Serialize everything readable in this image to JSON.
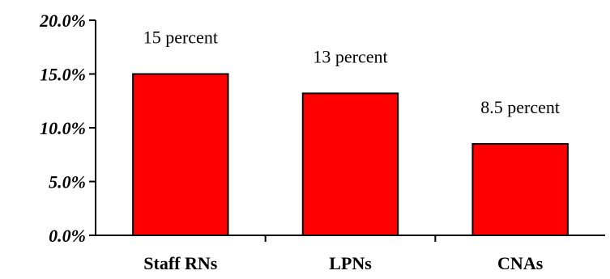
{
  "chart_data": {
    "type": "bar",
    "categories": [
      "Staff RNs",
      "LPNs",
      "CNAs"
    ],
    "values": [
      15.0,
      13.2,
      8.5
    ],
    "data_labels": [
      "15 percent",
      "13 percent",
      "8.5 percent"
    ],
    "yticks": [
      "0.0%",
      "5.0%",
      "10.0%",
      "15.0%",
      "20.0%"
    ],
    "ytick_values": [
      0,
      5,
      10,
      15,
      20
    ],
    "ylim": [
      0,
      20
    ],
    "grid": false,
    "legend": "none",
    "colors": {
      "bar_fill": "#ff0000",
      "bar_stroke": "#000000",
      "axis": "#000000"
    }
  }
}
